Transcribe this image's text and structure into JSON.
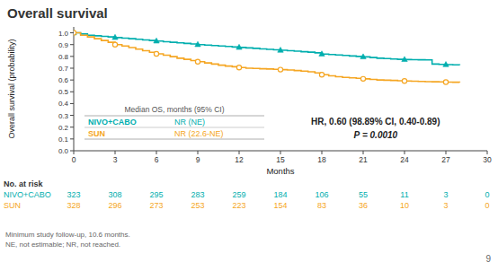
{
  "chart_data": {
    "type": "line",
    "title": "Overall survival",
    "x_label": "Months",
    "y_label": "Overall survival (probability)",
    "xlim": [
      0,
      30
    ],
    "ylim": [
      0.0,
      1.05
    ],
    "xticks": [
      0,
      3,
      6,
      9,
      12,
      15,
      18,
      21,
      24,
      27,
      30
    ],
    "yticks": [
      {
        "value": 0.0,
        "label": "0.0"
      },
      0.1,
      0.2,
      0.3,
      0.4,
      0.5,
      0.6,
      0.7,
      0.8,
      0.9,
      {
        "value": 1.0,
        "label": "1.0"
      }
    ],
    "grid": false,
    "legend": "lower left",
    "legend_title": "Median OS, months (95% CI)",
    "series": [
      {
        "name": "NIVO+CABO",
        "type": "step",
        "color": "#00AEAE",
        "median": "NR (NE)",
        "x": [
          0,
          0.5,
          1,
          1.5,
          2,
          2.5,
          3,
          3.5,
          4,
          4.5,
          5,
          5.5,
          6,
          6.5,
          7,
          7.5,
          8,
          8.5,
          9,
          9.5,
          10,
          10.5,
          11,
          11.5,
          12,
          12.5,
          13,
          13.5,
          14,
          14.5,
          15,
          15.5,
          16,
          16.5,
          17,
          17.5,
          18,
          18.5,
          19,
          19.5,
          20,
          20.5,
          21,
          21.5,
          22,
          22.5,
          23,
          23.5,
          24,
          24.5,
          25,
          25.5,
          26,
          26.5,
          27,
          27.5,
          28
        ],
        "values": [
          1.0,
          0.99,
          0.98,
          0.975,
          0.97,
          0.965,
          0.96,
          0.955,
          0.95,
          0.945,
          0.94,
          0.935,
          0.93,
          0.925,
          0.92,
          0.915,
          0.91,
          0.905,
          0.9,
          0.896,
          0.892,
          0.888,
          0.884,
          0.88,
          0.876,
          0.872,
          0.868,
          0.864,
          0.86,
          0.856,
          0.852,
          0.848,
          0.844,
          0.84,
          0.836,
          0.83,
          0.82,
          0.816,
          0.812,
          0.808,
          0.804,
          0.8,
          0.796,
          0.79,
          0.785,
          0.782,
          0.778,
          0.775,
          0.773,
          0.772,
          0.771,
          0.77,
          0.735,
          0.732,
          0.73,
          0.728,
          0.726
        ]
      },
      {
        "name": "SUN",
        "type": "step",
        "color": "#F5A623",
        "median": "NR (22.6-NE)",
        "x": [
          0,
          0.5,
          1,
          1.5,
          2,
          2.5,
          3,
          3.5,
          4,
          4.5,
          5,
          5.5,
          6,
          6.5,
          7,
          7.5,
          8,
          8.5,
          9,
          9.5,
          10,
          10.5,
          11,
          11.5,
          12,
          12.5,
          13,
          13.5,
          14,
          14.5,
          15,
          15.5,
          16,
          16.5,
          17,
          17.5,
          18,
          18.5,
          19,
          19.5,
          20,
          20.5,
          21,
          21.5,
          22,
          22.5,
          23,
          23.5,
          24,
          24.5,
          25,
          25.5,
          26,
          26.5,
          27,
          27.5,
          28
        ],
        "values": [
          1.0,
          0.98,
          0.965,
          0.95,
          0.935,
          0.92,
          0.9,
          0.888,
          0.875,
          0.862,
          0.848,
          0.835,
          0.822,
          0.81,
          0.798,
          0.785,
          0.775,
          0.765,
          0.755,
          0.745,
          0.735,
          0.726,
          0.718,
          0.712,
          0.706,
          0.7,
          0.698,
          0.695,
          0.693,
          0.69,
          0.688,
          0.685,
          0.68,
          0.675,
          0.67,
          0.66,
          0.645,
          0.635,
          0.628,
          0.622,
          0.618,
          0.614,
          0.61,
          0.605,
          0.6,
          0.598,
          0.596,
          0.594,
          0.592,
          0.59,
          0.588,
          0.586,
          0.585,
          0.584,
          0.582,
          0.581,
          0.58
        ]
      },
      {
        "type": "scatter",
        "marker": "triangle",
        "color": "#00AEAE",
        "x": [
          0,
          3,
          6,
          9,
          12,
          15,
          18,
          21,
          24,
          27
        ],
        "values": [
          1.0,
          0.96,
          0.93,
          0.9,
          0.876,
          0.852,
          0.82,
          0.796,
          0.773,
          0.73
        ]
      },
      {
        "type": "scatter",
        "marker": "circle",
        "color": "#F5A623",
        "x": [
          0,
          3,
          6,
          9,
          12,
          15,
          18,
          21,
          24,
          27
        ],
        "values": [
          1.0,
          0.9,
          0.822,
          0.755,
          0.706,
          0.688,
          0.645,
          0.61,
          0.592,
          0.582
        ]
      }
    ],
    "annotations": [
      "HR, 0.60 (98.89% CI, 0.40-0.89)",
      "P = 0.0010"
    ],
    "at_risk": {
      "title": "No. at risk",
      "months": [
        0,
        3,
        6,
        9,
        12,
        15,
        18,
        21,
        24,
        27,
        30
      ],
      "series": [
        {
          "values": [
            323,
            308,
            295,
            283,
            259,
            184,
            106,
            55,
            11,
            3,
            0
          ]
        },
        {
          "values": [
            328,
            296,
            273,
            253,
            223,
            154,
            83,
            36,
            10,
            3,
            0
          ]
        }
      ]
    },
    "footnotes": [
      "Minimum study follow-up, 10.6 months.",
      "NE, not estimable; NR, not reached."
    ],
    "page_number": "9"
  }
}
